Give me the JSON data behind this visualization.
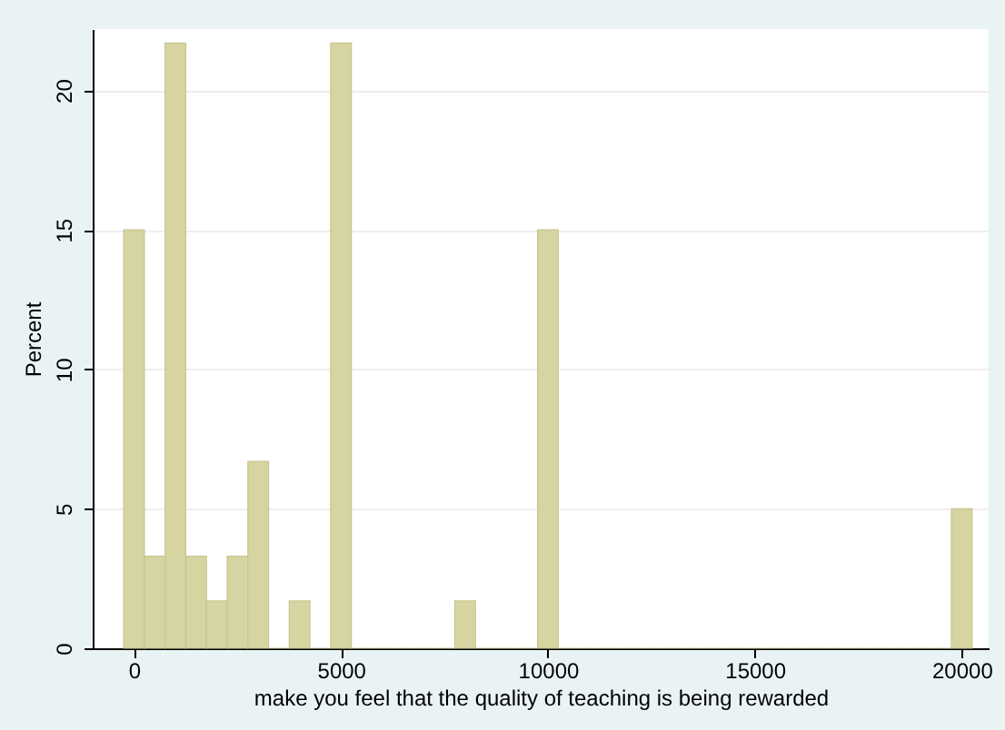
{
  "chart_data": {
    "type": "histogram",
    "xlabel": "make you feel that the quality of teaching is being rewarded",
    "ylabel": "Percent",
    "bins": [
      -250,
      250,
      750,
      1250,
      1750,
      2250,
      2750,
      3250,
      3750,
      4250,
      4750,
      5250,
      5750,
      6250,
      6750,
      7250,
      7750,
      8250,
      8750,
      9250,
      9750,
      10250,
      10750,
      11250,
      11750,
      12250,
      12750,
      13250,
      13750,
      14250,
      14750,
      15250,
      15750,
      16250,
      16750,
      17250,
      17750,
      18250,
      18750,
      19250,
      19750,
      20250
    ],
    "values": [
      15,
      3.3,
      21.7,
      3.3,
      1.7,
      3.3,
      6.7,
      0,
      1.7,
      0,
      21.7,
      0,
      0,
      0,
      0,
      0,
      1.7,
      0,
      0,
      0,
      15,
      0,
      0,
      0,
      0,
      0,
      0,
      0,
      0,
      0,
      0,
      0,
      0,
      0,
      0,
      0,
      0,
      0,
      0,
      0,
      5
    ],
    "color": "#d6d4a0",
    "xlim": [
      -1000,
      20650
    ],
    "ylim": [
      0,
      22.2
    ],
    "xticks": [
      0,
      5000,
      10000,
      15000,
      20000
    ],
    "yticks": [
      0,
      5,
      10,
      15,
      20
    ],
    "grid": "y"
  }
}
